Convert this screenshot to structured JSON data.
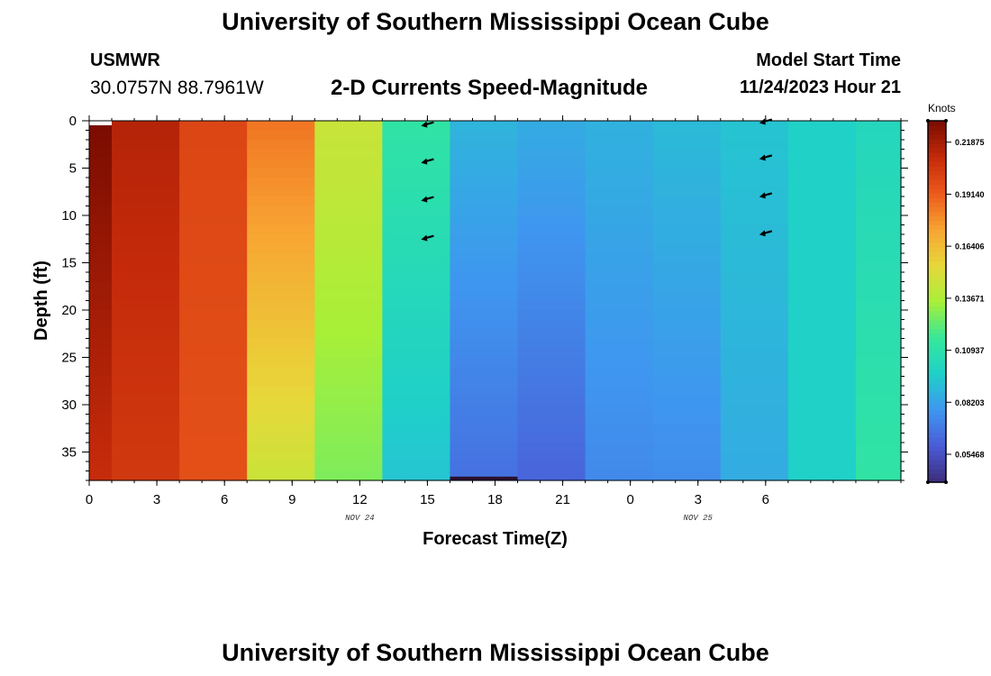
{
  "header": {
    "title": "University of Southern Mississippi Ocean Cube",
    "station": "USMWR",
    "coords": "30.0757N  88.7961W",
    "subtitle": "2-D Currents Speed-Magnitude",
    "model_start_label": "Model Start Time",
    "model_start_value": "11/24/2023 Hour 21"
  },
  "footer": {
    "title": "University of Southern Mississippi Ocean Cube"
  },
  "colors": {
    "stops": [
      "#3c2c7a",
      "#4a5bd6",
      "#3f96f0",
      "#1fd0c9",
      "#35e89a",
      "#a8ef38",
      "#e7d83a",
      "#f8a432",
      "#ec5a1b",
      "#c42a0a",
      "#7a0c00"
    ]
  },
  "chart_data": {
    "type": "heatmap",
    "title": "2-D Currents Speed-Magnitude",
    "xlabel": "Forecast Time(Z)",
    "ylabel": "Depth (ft)",
    "x_hours": [
      0,
      1,
      4,
      7,
      10,
      13,
      16,
      19,
      22,
      25,
      28,
      31,
      34
    ],
    "xlim": [
      0,
      36
    ],
    "ylim": [
      0,
      38
    ],
    "x_ticks": [
      {
        "hour": 0,
        "label": "0"
      },
      {
        "hour": 3,
        "label": "3"
      },
      {
        "hour": 6,
        "label": "6"
      },
      {
        "hour": 9,
        "label": "9"
      },
      {
        "hour": 12,
        "label": "12"
      },
      {
        "hour": 15,
        "label": "15"
      },
      {
        "hour": 18,
        "label": "18"
      },
      {
        "hour": 21,
        "label": "21"
      },
      {
        "hour": 24,
        "label": "0"
      },
      {
        "hour": 27,
        "label": "3"
      },
      {
        "hour": 30,
        "label": "6"
      }
    ],
    "day_labels": [
      {
        "hour": 12,
        "label": "NOV 24"
      },
      {
        "hour": 27,
        "label": "NOV 25"
      }
    ],
    "y_ticks": [
      0,
      5,
      10,
      15,
      20,
      25,
      30,
      35
    ],
    "colorbar": {
      "units": "Knots",
      "min": 0.04,
      "max": 0.23,
      "labels": [
        "0.21875",
        "0.19140",
        "0.16406",
        "0.13671",
        "0.10937",
        "0.08203",
        "0.05468"
      ],
      "label_values": [
        0.21875,
        0.1914,
        0.16406,
        0.13671,
        0.10937,
        0.08203,
        0.05468
      ]
    },
    "columns": [
      {
        "hour": 0,
        "surface": 0.23,
        "bottom": 0.21
      },
      {
        "hour": 1,
        "surface": 0.215,
        "bottom": 0.205
      },
      {
        "hour": 4,
        "surface": 0.2,
        "bottom": 0.196
      },
      {
        "hour": 7,
        "surface": 0.185,
        "bottom": 0.145
      },
      {
        "hour": 10,
        "surface": 0.145,
        "bottom": 0.128
      },
      {
        "hour": 13,
        "surface": 0.112,
        "bottom": 0.093
      },
      {
        "hour": 16,
        "surface": 0.088,
        "bottom": 0.066
      },
      {
        "hour": 19,
        "surface": 0.085,
        "bottom": 0.062
      },
      {
        "hour": 22,
        "surface": 0.087,
        "bottom": 0.074
      },
      {
        "hour": 25,
        "surface": 0.09,
        "bottom": 0.075
      },
      {
        "hour": 28,
        "surface": 0.093,
        "bottom": 0.085
      },
      {
        "hour": 31,
        "surface": 0.098,
        "bottom": 0.098
      },
      {
        "hour": 34,
        "surface": 0.102,
        "bottom": 0.112
      }
    ],
    "vectors": [
      {
        "hour": 15,
        "depth": 0.3
      },
      {
        "hour": 15,
        "depth": 4.2
      },
      {
        "hour": 15,
        "depth": 8.2
      },
      {
        "hour": 15,
        "depth": 12.3
      },
      {
        "hour": 30,
        "depth": 0.0
      },
      {
        "hour": 30,
        "depth": 3.8
      },
      {
        "hour": 30,
        "depth": 7.8
      },
      {
        "hour": 30,
        "depth": 11.8
      }
    ]
  }
}
